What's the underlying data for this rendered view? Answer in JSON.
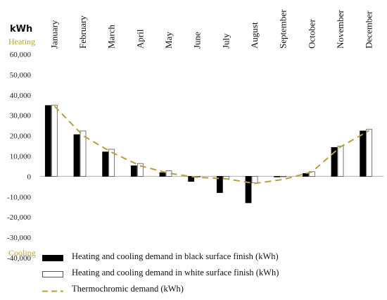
{
  "chart_data": {
    "type": "bar",
    "categories": [
      "January",
      "February",
      "March",
      "April",
      "May",
      "June",
      "July",
      "August",
      "September",
      "October",
      "November",
      "December"
    ],
    "series": [
      {
        "name": "Heating and cooling demand in black surface finish  (kWh)",
        "kind": "bar",
        "fill": "#000000",
        "stroke": "#000000",
        "values": [
          34800,
          20500,
          12000,
          5200,
          1800,
          -2500,
          -8000,
          -13000,
          -300,
          1400,
          14200,
          22300
        ]
      },
      {
        "name": "Heating and cooling demand in white surface finish  (kWh)",
        "kind": "bar",
        "fill": "#ffffff",
        "stroke": "#555555",
        "values": [
          35000,
          22300,
          13300,
          6300,
          2700,
          -300,
          -1200,
          -3200,
          -200,
          2300,
          14900,
          23100
        ]
      },
      {
        "name": "Thermochromic demand (kWh)",
        "kind": "line",
        "color": "#b5a13c",
        "dash": "dashed",
        "values": [
          34500,
          20000,
          11800,
          5200,
          1500,
          -500,
          -1200,
          -3500,
          -1500,
          2200,
          14500,
          22500
        ]
      }
    ],
    "ylim": [
      -40000,
      60000
    ],
    "yticks": [
      -40000,
      -30000,
      -20000,
      -10000,
      0,
      10000,
      20000,
      30000,
      40000,
      50000,
      60000
    ],
    "ytick_labels": [
      "-40,000",
      "-30,000",
      "-20,000",
      "-10,000",
      "0",
      "10,000",
      "20,000",
      "30,000",
      "40,000",
      "50,000",
      "60,000"
    ],
    "unit_label": "kWh",
    "heating_label": "Heating",
    "cooling_label": "Cooling",
    "grid": false,
    "legend_position": "bottom"
  }
}
